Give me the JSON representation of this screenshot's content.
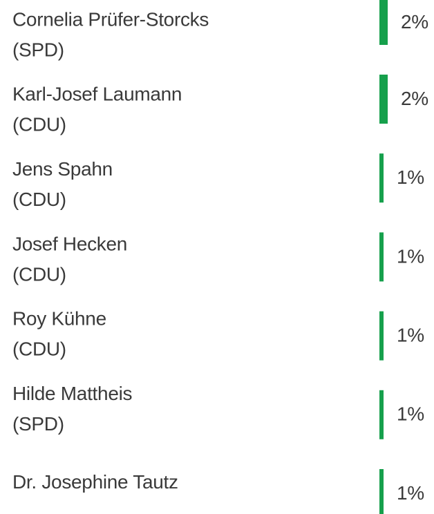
{
  "chart_data": {
    "type": "bar",
    "orientation": "horizontal",
    "categories": [
      "Cornelia Prüfer-Storcks",
      "Karl-Josef Laumann",
      "Jens Spahn",
      "Josef Hecken",
      "Roy Kühne",
      "Hilde Mattheis",
      "Dr. Josephine Tautz"
    ],
    "parties": [
      "(SPD)",
      "(CDU)",
      "(CDU)",
      "(CDU)",
      "(CDU)",
      "(SPD)",
      null
    ],
    "values": [
      2,
      2,
      1,
      1,
      1,
      1,
      1
    ],
    "value_labels": [
      "2%",
      "2%",
      "1%",
      "1%",
      "1%",
      "1%",
      "1%"
    ],
    "color": "#16a04c"
  }
}
